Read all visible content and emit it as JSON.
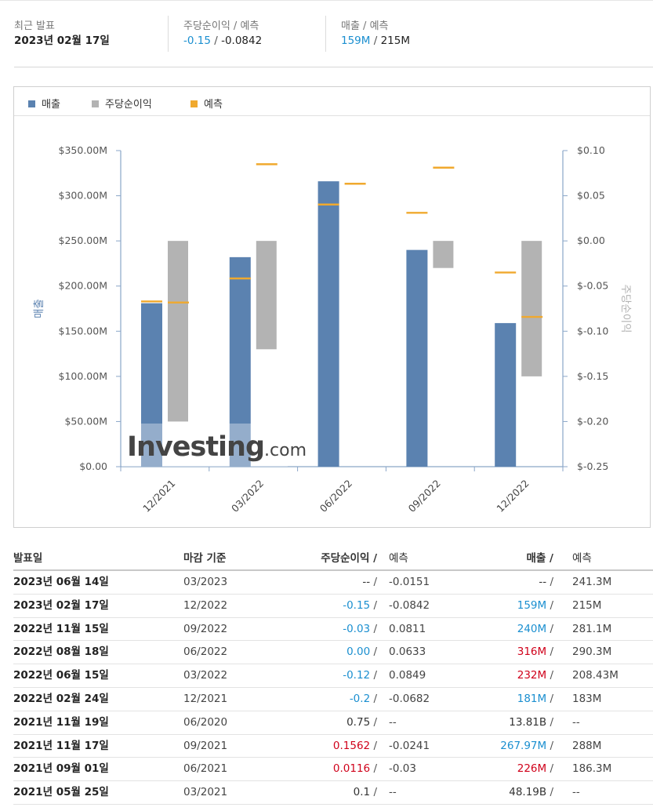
{
  "summary": {
    "latest_label": "최근 발표",
    "latest_value": "2023년 02월 17일",
    "eps_label": "주당순이익 / 예측",
    "eps_actual": "-0.15",
    "eps_forecast": "-0.0842",
    "rev_label": "매출 / 예측",
    "rev_actual": "159M",
    "rev_forecast": "215M",
    "slash": "/"
  },
  "legend": {
    "revenue": "매출",
    "eps": "주당순이익",
    "forecast": "예측"
  },
  "colors": {
    "revenue": "#5b82b0",
    "eps": "#b3b3b3",
    "forecast": "#f0a92e",
    "positive": "#d0021b",
    "negative": "#1b8fd0",
    "watermark": "#444444"
  },
  "watermark": {
    "main": "Investing",
    "suffix": ".com"
  },
  "chart_data": {
    "type": "bar",
    "categories": [
      "12/2021",
      "03/2022",
      "06/2022",
      "09/2022",
      "12/2022"
    ],
    "series": [
      {
        "name": "매출",
        "axis": "left",
        "values": [
          181,
          232,
          316,
          240,
          159
        ],
        "forecast": [
          183,
          208.43,
          290.3,
          281.1,
          215
        ]
      },
      {
        "name": "주당순이익",
        "axis": "right",
        "values": [
          -0.2,
          -0.12,
          0.0,
          -0.03,
          -0.15
        ],
        "forecast": [
          -0.0682,
          0.0849,
          0.0633,
          0.0811,
          -0.0842
        ]
      },
      {
        "name": "예측",
        "type": "marker"
      }
    ],
    "ylabel": "매출",
    "y2label": "주당순이익",
    "ylim": [
      0,
      350
    ],
    "y2lim": [
      -0.25,
      0.1
    ],
    "yticks": [
      "$0.00",
      "$50.00M",
      "$100.00M",
      "$150.00M",
      "$200.00M",
      "$250.00M",
      "$300.00M",
      "$350.00M"
    ],
    "y2ticks": [
      "$-0.25",
      "$-0.20",
      "$-0.15",
      "$-0.10",
      "$-0.05",
      "$0.00",
      "$0.05",
      "$0.10"
    ],
    "legend_position": "top-left",
    "grid": false
  },
  "table": {
    "headers": {
      "date": "발표일",
      "period": "마감 기준",
      "eps": "주당순이익 /",
      "eps_forecast": "예측",
      "rev": "매출 /",
      "rev_forecast": "예측"
    },
    "slash": "/",
    "rows": [
      {
        "date": "2023년 06월 14일",
        "period": "03/2023",
        "eps": "--",
        "eps_tone": "neutral",
        "eps_forecast": "-0.0151",
        "rev": "--",
        "rev_tone": "neutral",
        "rev_forecast": "241.3M"
      },
      {
        "date": "2023년 02월 17일",
        "period": "12/2022",
        "eps": "-0.15",
        "eps_tone": "negative",
        "eps_forecast": "-0.0842",
        "rev": "159M",
        "rev_tone": "negative",
        "rev_forecast": "215M"
      },
      {
        "date": "2022년 11월 15일",
        "period": "09/2022",
        "eps": "-0.03",
        "eps_tone": "negative",
        "eps_forecast": "0.0811",
        "rev": "240M",
        "rev_tone": "negative",
        "rev_forecast": "281.1M"
      },
      {
        "date": "2022년 08월 18일",
        "period": "06/2022",
        "eps": "0.00",
        "eps_tone": "negative",
        "eps_forecast": "0.0633",
        "rev": "316M",
        "rev_tone": "positive",
        "rev_forecast": "290.3M"
      },
      {
        "date": "2022년 06월 15일",
        "period": "03/2022",
        "eps": "-0.12",
        "eps_tone": "negative",
        "eps_forecast": "0.0849",
        "rev": "232M",
        "rev_tone": "positive",
        "rev_forecast": "208.43M"
      },
      {
        "date": "2022년 02월 24일",
        "period": "12/2021",
        "eps": "-0.2",
        "eps_tone": "negative",
        "eps_forecast": "-0.0682",
        "rev": "181M",
        "rev_tone": "negative",
        "rev_forecast": "183M"
      },
      {
        "date": "2021년 11월 19일",
        "period": "06/2020",
        "eps": "0.75",
        "eps_tone": "neutral",
        "eps_forecast": "--",
        "rev": "13.81B",
        "rev_tone": "neutral",
        "rev_forecast": "--"
      },
      {
        "date": "2021년 11월 17일",
        "period": "09/2021",
        "eps": "0.1562",
        "eps_tone": "positive",
        "eps_forecast": "-0.0241",
        "rev": "267.97M",
        "rev_tone": "negative",
        "rev_forecast": "288M"
      },
      {
        "date": "2021년 09월 01일",
        "period": "06/2021",
        "eps": "0.0116",
        "eps_tone": "positive",
        "eps_forecast": "-0.03",
        "rev": "226M",
        "rev_tone": "positive",
        "rev_forecast": "186.3M"
      },
      {
        "date": "2021년 05월 25일",
        "period": "03/2021",
        "eps": "0.1",
        "eps_tone": "neutral",
        "eps_forecast": "--",
        "rev": "48.19B",
        "rev_tone": "neutral",
        "rev_forecast": "--"
      }
    ]
  }
}
